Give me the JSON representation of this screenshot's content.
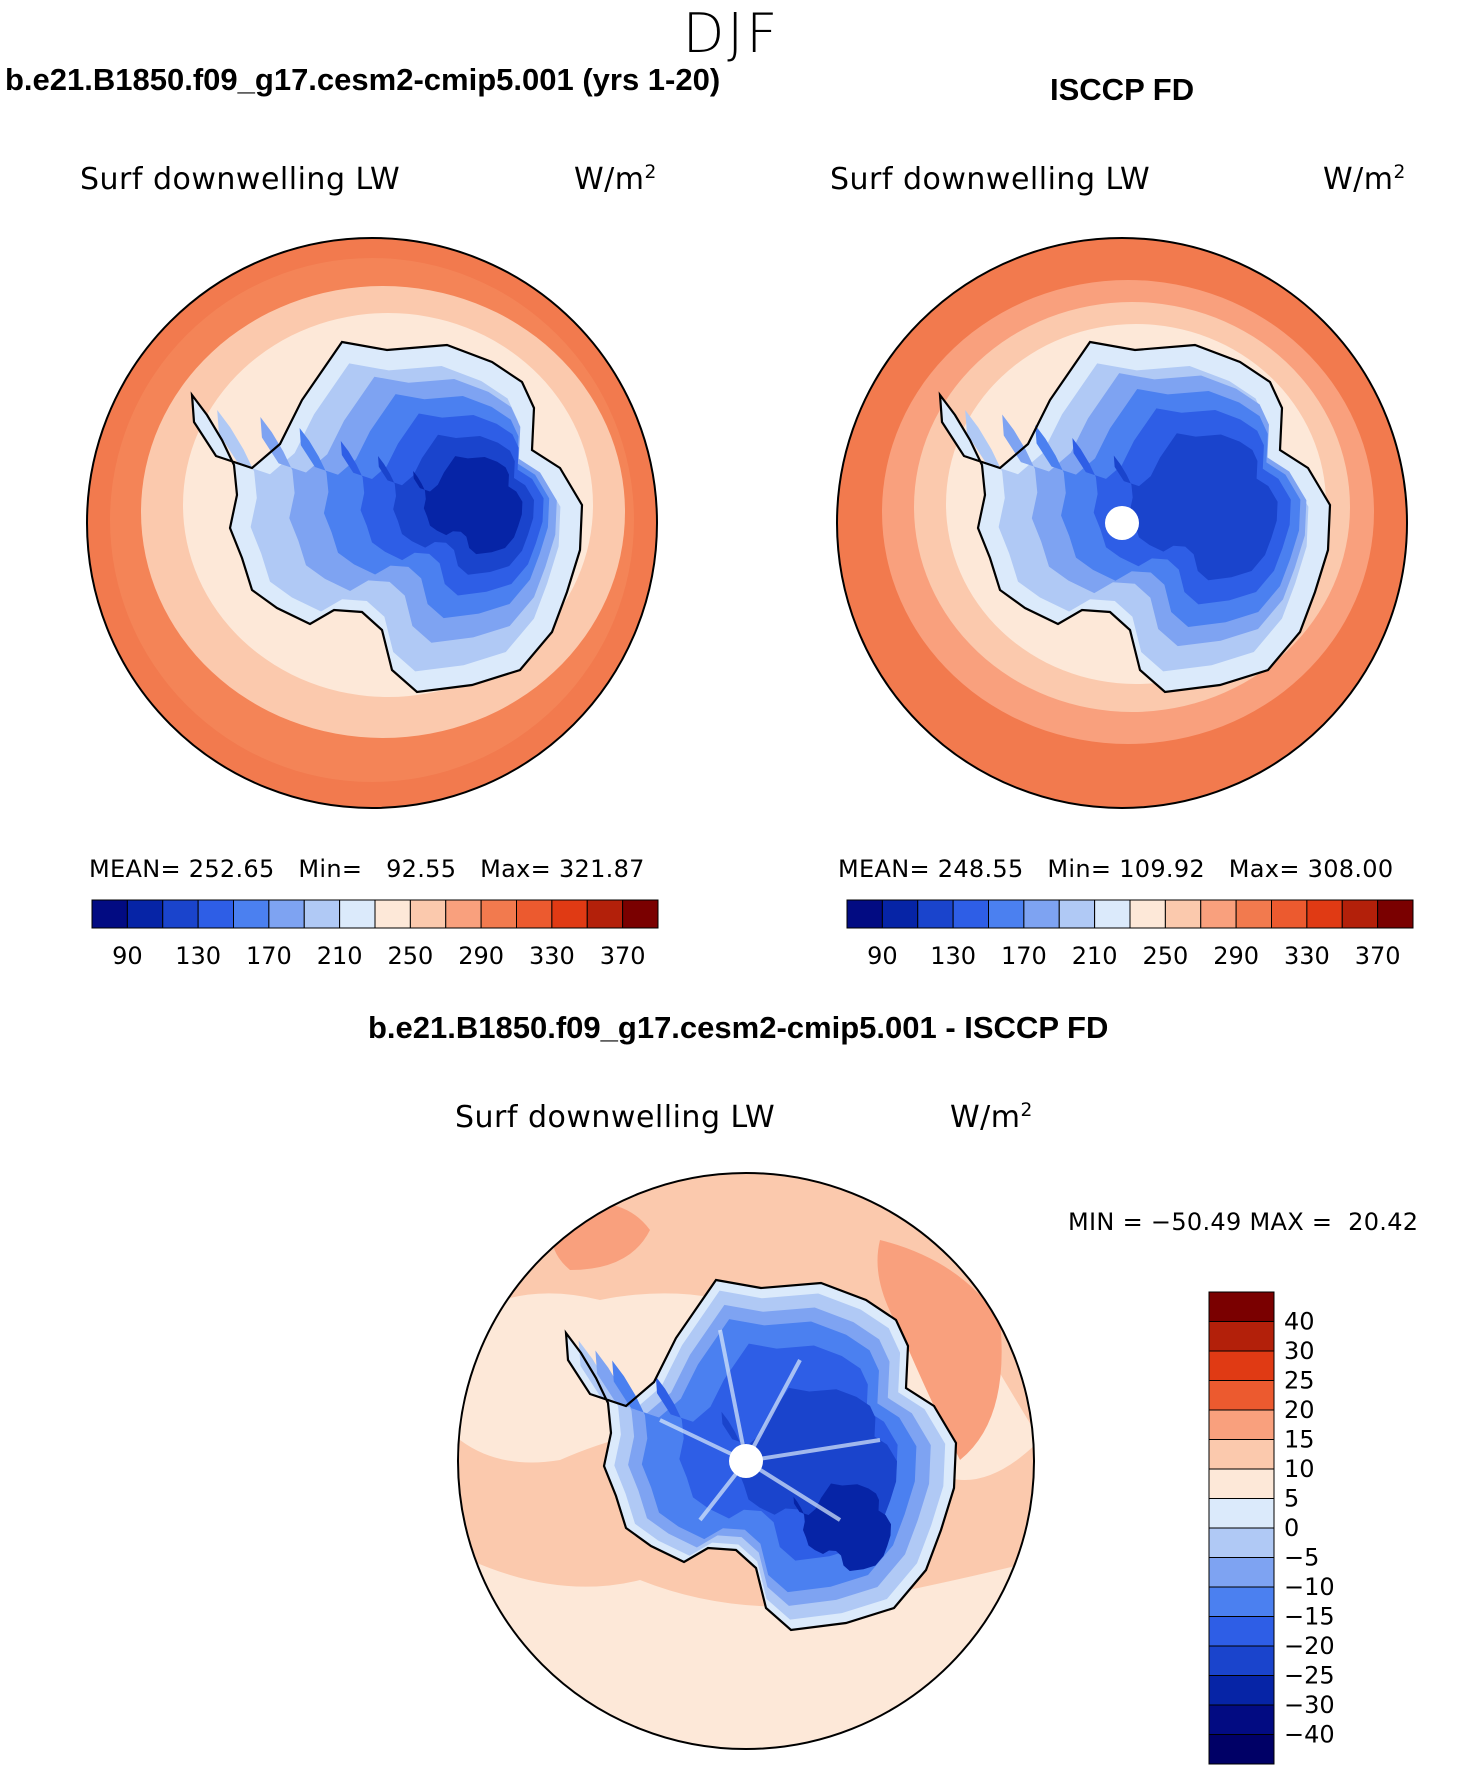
{
  "season": "DJF",
  "panels": [
    {
      "id": "model",
      "title": "b.e21.B1850.f09_g17.cesm2-cmip5.001 (yrs 1-20)",
      "variable": "Surf downwelling LW",
      "units": "W/m",
      "units_exp": "2",
      "mean_label": "MEAN=",
      "mean": "252.65",
      "min_label": "Min=",
      "min": "92.55",
      "max_label": "Max=",
      "max": "321.87"
    },
    {
      "id": "obs",
      "title": "ISCCP FD",
      "variable": "Surf downwelling LW",
      "units": "W/m",
      "units_exp": "2",
      "mean_label": "MEAN=",
      "mean": "248.55",
      "min_label": "Min=",
      "min": "109.92",
      "max_label": "Max=",
      "max": "308.00"
    }
  ],
  "diff": {
    "title": "b.e21.B1850.f09_g17.cesm2-cmip5.001 - ISCCP FD",
    "variable": "Surf downwelling LW",
    "units": "W/m",
    "units_exp": "2",
    "min_label": "MIN =",
    "min": "−50.49",
    "max_label": "MAX =",
    "max": "20.42"
  },
  "chart_data": [
    {
      "type": "heatmap",
      "projection": "south polar stereographic",
      "title": "b.e21.B1850.f09_g17.cesm2-cmip5.001 (yrs 1-20)",
      "variable": "Surf downwelling LW",
      "units": "W/m2",
      "mean": 252.65,
      "min": 92.55,
      "max": 321.87,
      "colorbar_ticks": [
        "90",
        "130",
        "170",
        "210",
        "250",
        "290",
        "330",
        "370"
      ],
      "colorbar_colors": [
        "#020b82",
        "#0624a6",
        "#1a44cc",
        "#2e5ee6",
        "#4b80f0",
        "#7ea3f2",
        "#b0c9f5",
        "#dbeafb",
        "#fde8d8",
        "#fbc9ad",
        "#f9a07d",
        "#f27a4e",
        "#ec5a2f",
        "#e03a14",
        "#b3200a",
        "#7a0000"
      ]
    },
    {
      "type": "heatmap",
      "projection": "south polar stereographic",
      "title": "ISCCP FD",
      "variable": "Surf downwelling LW",
      "units": "W/m2",
      "mean": 248.55,
      "min": 109.92,
      "max": 308.0,
      "colorbar_ticks": [
        "90",
        "130",
        "170",
        "210",
        "250",
        "290",
        "330",
        "370"
      ],
      "colorbar_colors": [
        "#020b82",
        "#0624a6",
        "#1a44cc",
        "#2e5ee6",
        "#4b80f0",
        "#7ea3f2",
        "#b0c9f5",
        "#dbeafb",
        "#fde8d8",
        "#fbc9ad",
        "#f9a07d",
        "#f27a4e",
        "#ec5a2f",
        "#e03a14",
        "#b3200a",
        "#7a0000"
      ]
    },
    {
      "type": "heatmap",
      "projection": "south polar stereographic",
      "title": "b.e21.B1850.f09_g17.cesm2-cmip5.001 - ISCCP FD",
      "variable": "Surf downwelling LW",
      "units": "W/m2",
      "min": -50.49,
      "max": 20.42,
      "colorbar_ticks": [
        "40",
        "30",
        "25",
        "20",
        "15",
        "10",
        "5",
        "0",
        "−5",
        "−10",
        "−15",
        "−20",
        "−25",
        "−30",
        "−40"
      ],
      "colorbar_colors": [
        "#7a0000",
        "#b3200a",
        "#e03a14",
        "#ec5a2f",
        "#f9a07d",
        "#fbc9ad",
        "#fde8d8",
        "#dbeafb",
        "#b0c9f5",
        "#7ea3f2",
        "#4b80f0",
        "#2e5ee6",
        "#1a44cc",
        "#0624a6",
        "#020b82",
        "#000066"
      ]
    }
  ]
}
